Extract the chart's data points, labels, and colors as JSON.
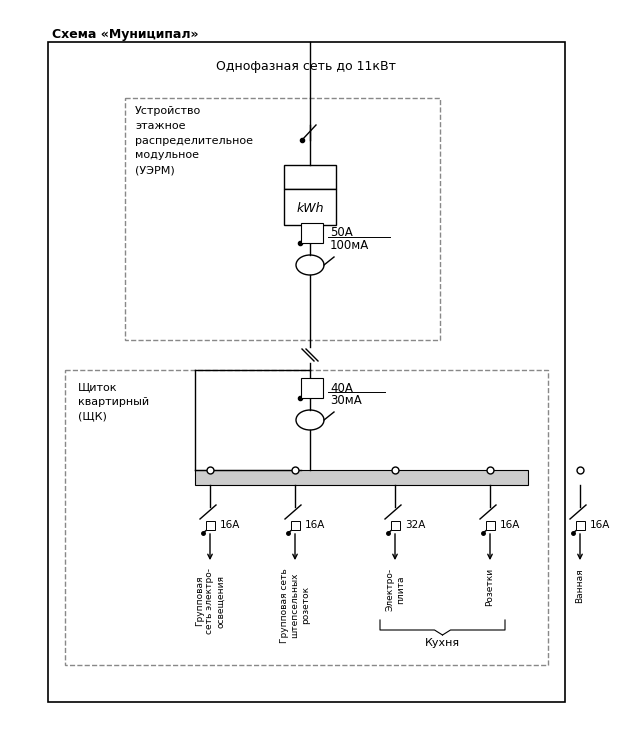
{
  "title": "Схема «Муниципал»",
  "bg_color": "#ffffff",
  "fig_width": 5.93,
  "fig_height": 7.2,
  "top_label": "Однофазная сеть до 11кВт",
  "uerm_label": "Устройство\nэтажное\nраспределительное\nмодульное\n(УЭРМ)",
  "shk_label": "Щиток\nквартирный\n(ЩК)",
  "kwh_label": "kWh",
  "uerm_breaker_label_top": "50А",
  "uerm_breaker_label_bot": "100мА",
  "shk_breaker_label_top": "40А",
  "shk_breaker_label_bot": "30мА",
  "branch_labels": [
    "16А",
    "16А",
    "32А",
    "16А",
    "16А"
  ],
  "branch_bottom_labels": [
    "Групповая\nсеть электро-\nосвещения",
    "Групповая сеть\nштепсельных\nрозеток",
    "Электро-\nплита",
    "Розетки",
    "Ванная"
  ],
  "kitchen_label": "Кухня",
  "main_color": "#000000",
  "dashed_color": "#888888"
}
